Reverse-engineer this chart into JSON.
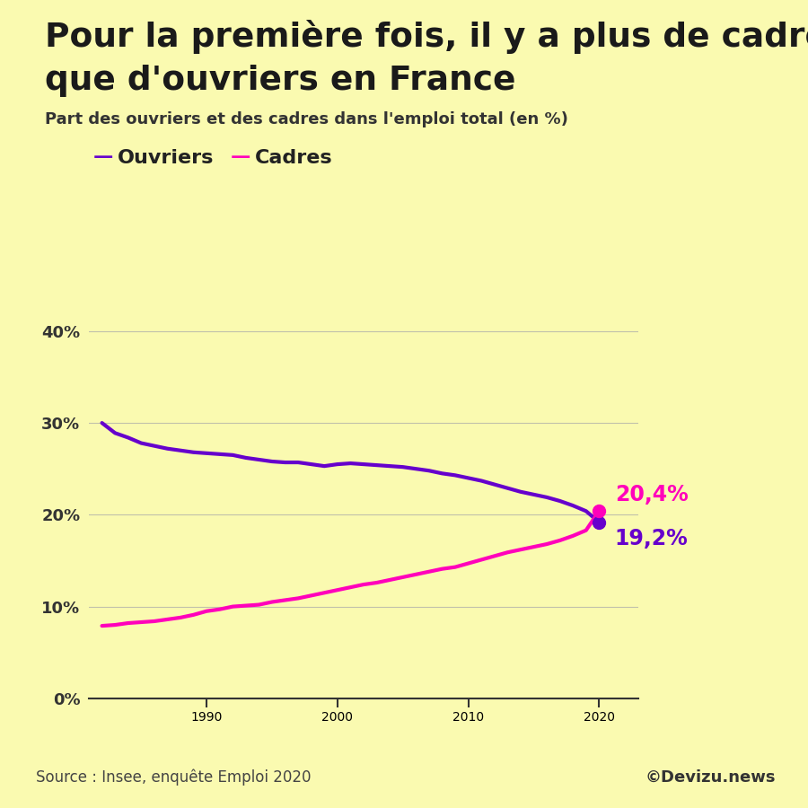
{
  "title_line1": "Pour la première fois, il y a plus de cadres",
  "title_line2": "que d'ouvriers en France",
  "subtitle": "Part des ouvriers et des cadres dans l'emploi total (en %)",
  "source": "Source : Insee, enquête Emploi 2020",
  "copyright": "©Devizu.news",
  "background_color": "#FAFAB0",
  "ouvriers_color": "#6600CC",
  "cadres_color": "#FF00BB",
  "end_label_cadres": "20,4%",
  "end_label_ouvriers": "19,2%",
  "ouvriers_data": {
    "years": [
      1982,
      1983,
      1984,
      1985,
      1986,
      1987,
      1988,
      1989,
      1990,
      1991,
      1992,
      1993,
      1994,
      1995,
      1996,
      1997,
      1998,
      1999,
      2000,
      2001,
      2002,
      2003,
      2004,
      2005,
      2006,
      2007,
      2008,
      2009,
      2010,
      2011,
      2012,
      2013,
      2014,
      2015,
      2016,
      2017,
      2018,
      2019,
      2020
    ],
    "values": [
      0.3,
      0.289,
      0.284,
      0.278,
      0.275,
      0.272,
      0.27,
      0.268,
      0.267,
      0.266,
      0.265,
      0.262,
      0.26,
      0.258,
      0.257,
      0.257,
      0.255,
      0.253,
      0.255,
      0.256,
      0.255,
      0.254,
      0.253,
      0.252,
      0.25,
      0.248,
      0.245,
      0.243,
      0.24,
      0.237,
      0.233,
      0.229,
      0.225,
      0.222,
      0.219,
      0.215,
      0.21,
      0.204,
      0.192
    ]
  },
  "cadres_data": {
    "years": [
      1982,
      1983,
      1984,
      1985,
      1986,
      1987,
      1988,
      1989,
      1990,
      1991,
      1992,
      1993,
      1994,
      1995,
      1996,
      1997,
      1998,
      1999,
      2000,
      2001,
      2002,
      2003,
      2004,
      2005,
      2006,
      2007,
      2008,
      2009,
      2010,
      2011,
      2012,
      2013,
      2014,
      2015,
      2016,
      2017,
      2018,
      2019,
      2020
    ],
    "values": [
      0.079,
      0.08,
      0.082,
      0.083,
      0.084,
      0.086,
      0.088,
      0.091,
      0.095,
      0.097,
      0.1,
      0.101,
      0.102,
      0.105,
      0.107,
      0.109,
      0.112,
      0.115,
      0.118,
      0.121,
      0.124,
      0.126,
      0.129,
      0.132,
      0.135,
      0.138,
      0.141,
      0.143,
      0.147,
      0.151,
      0.155,
      0.159,
      0.162,
      0.165,
      0.168,
      0.172,
      0.177,
      0.183,
      0.204
    ]
  },
  "yticks": [
    0.0,
    0.1,
    0.2,
    0.3,
    0.4
  ],
  "ytick_labels": [
    "0%",
    "10%",
    "20%",
    "30%",
    "40%"
  ],
  "xticks": [
    1990,
    2000,
    2010,
    2020
  ],
  "ylim": [
    -0.005,
    0.435
  ],
  "xlim": [
    1981,
    2023
  ]
}
